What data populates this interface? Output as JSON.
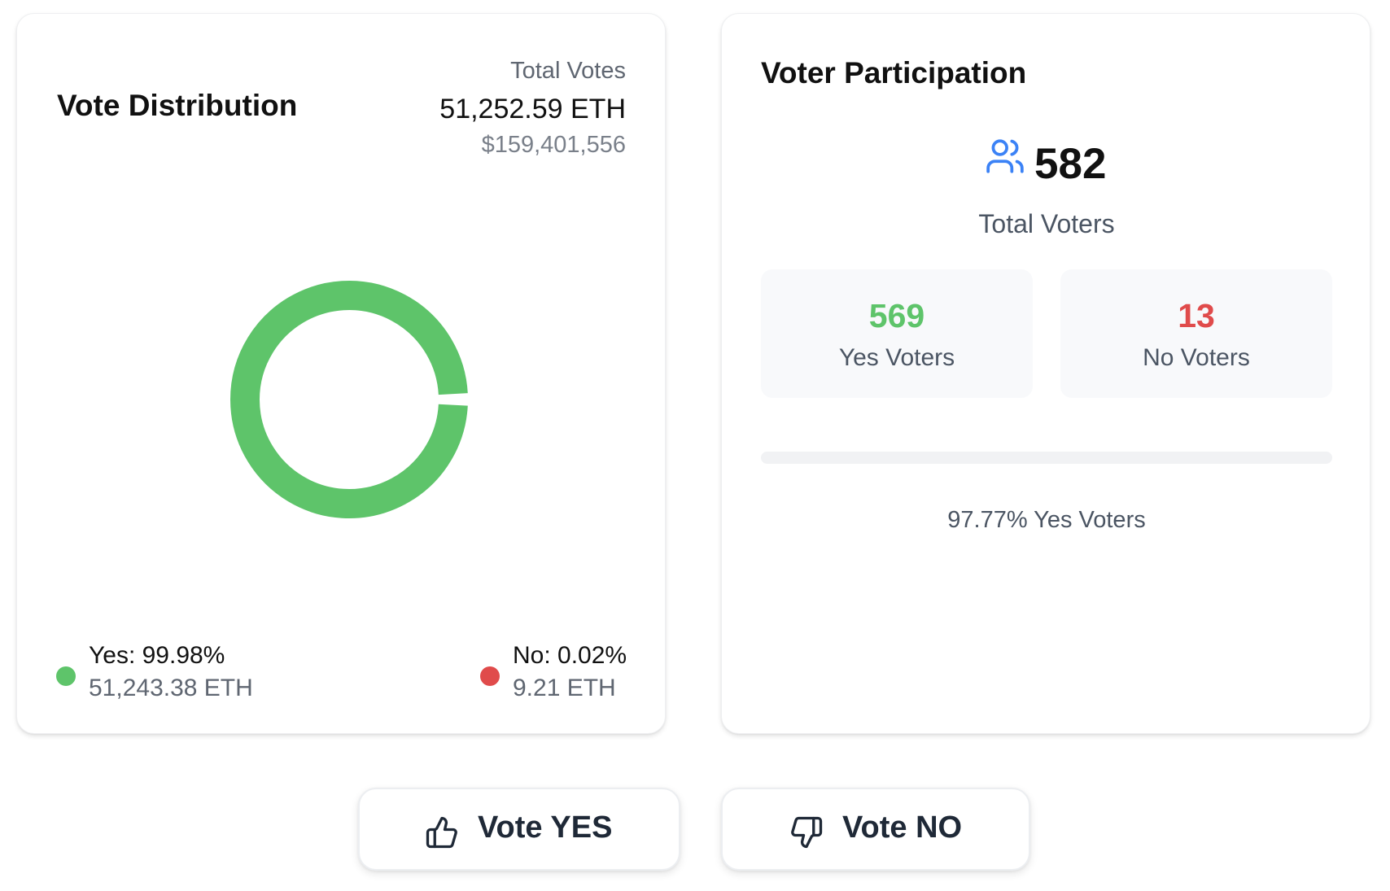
{
  "vote_distribution": {
    "title": "Vote Distribution",
    "total_votes_label": "Total Votes",
    "total_votes_eth": "51,252.59 ETH",
    "total_votes_usd": "$159,401,556",
    "legend": [
      {
        "label": "Yes: 99.98%",
        "amount": "51,243.38 ETH",
        "color": "#5ec46a"
      },
      {
        "label": "No: 0.02%",
        "amount": "9.21 ETH",
        "color": "#e04b4b"
      }
    ]
  },
  "chart_data": {
    "type": "pie",
    "style": "donut",
    "categories": [
      "Yes",
      "No"
    ],
    "values": [
      99.98,
      0.02
    ],
    "amounts_eth": [
      51243.38,
      9.21
    ],
    "colors": [
      "#5ec46a",
      "#e04b4b"
    ]
  },
  "voter_participation": {
    "title": "Voter Participation",
    "icon": "users-icon",
    "total_voters": "582",
    "total_voters_label": "Total Voters",
    "yes_voters": "569",
    "yes_voters_label": "Yes Voters",
    "no_voters": "13",
    "no_voters_label": "No Voters",
    "yes_fraction": 0.9777,
    "yes_percent_label": "97.77% Yes Voters",
    "yes_color": "#5ec46a",
    "no_color": "#e04b4b"
  },
  "actions": {
    "vote_yes_label": "Vote YES",
    "vote_yes_icon": "thumbs-up-icon",
    "vote_no_label": "Vote NO",
    "vote_no_icon": "thumbs-down-icon"
  }
}
